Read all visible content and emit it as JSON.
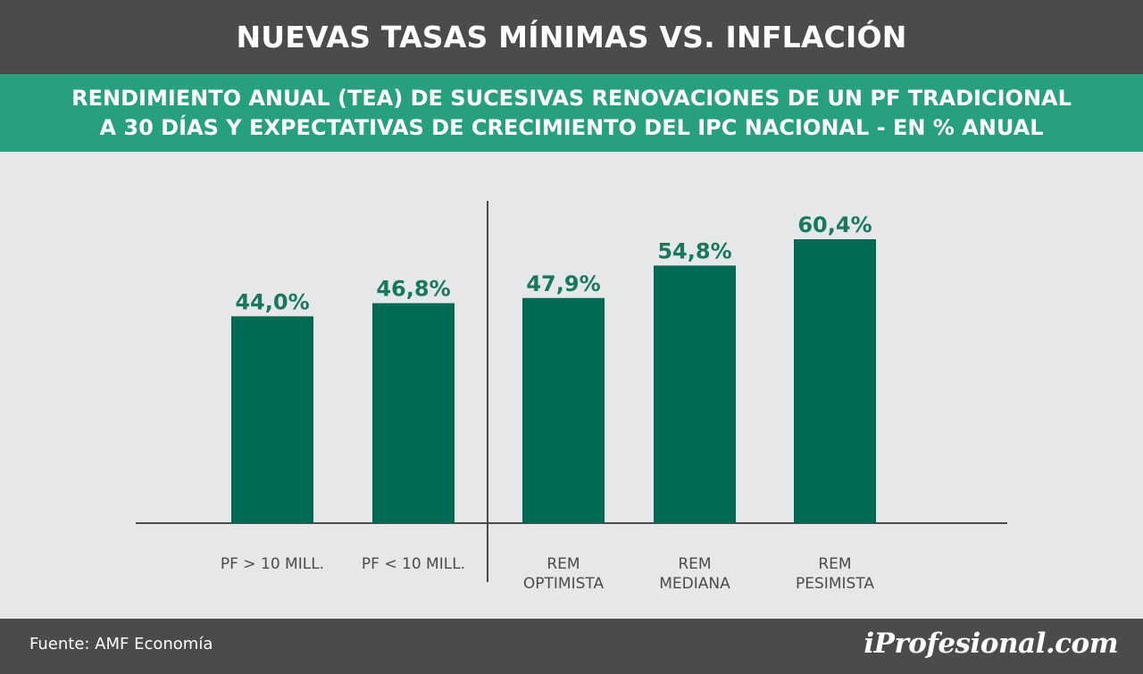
{
  "title": "NUEVAS TASAS MÍNIMAS VS. INFLACIÓN",
  "subtitle_lines": [
    "RENDIMIENTO ANUAL (TEA) DE SUCESIVAS RENOVACIONES DE UN PF TRADICIONAL",
    "A 30 DÍAS Y EXPECTATIVAS DE CRECIMIENTO DEL IPC NACIONAL -  EN % ANUAL"
  ],
  "chart_data": {
    "type": "bar",
    "categories": [
      [
        "PF > 10 MILL."
      ],
      [
        "PF < 10 MILL."
      ],
      [
        "REM",
        "OPTIMISTA"
      ],
      [
        "REM",
        "MEDIANA"
      ],
      [
        "REM",
        "PESIMISTA"
      ]
    ],
    "values": [
      44.0,
      46.8,
      47.9,
      54.8,
      60.4
    ],
    "value_labels": [
      "44,0%",
      "46,8%",
      "47,9%",
      "54,8%",
      "60,4%"
    ],
    "ylim": [
      0,
      62
    ],
    "grid": false,
    "group_separator_after_index": 1,
    "bar_color": "#006b55",
    "label_color": "#17785f"
  },
  "footer": {
    "source": "Fuente: AMF Economía",
    "brand": "iProfesional.com"
  },
  "colors": {
    "title_bg": "#4b4b4d",
    "subtitle_bg": "#27a07f",
    "chart_bg": "#e6e7e8",
    "axis": "#4b4b4d",
    "category_text": "#4b4b4d"
  }
}
